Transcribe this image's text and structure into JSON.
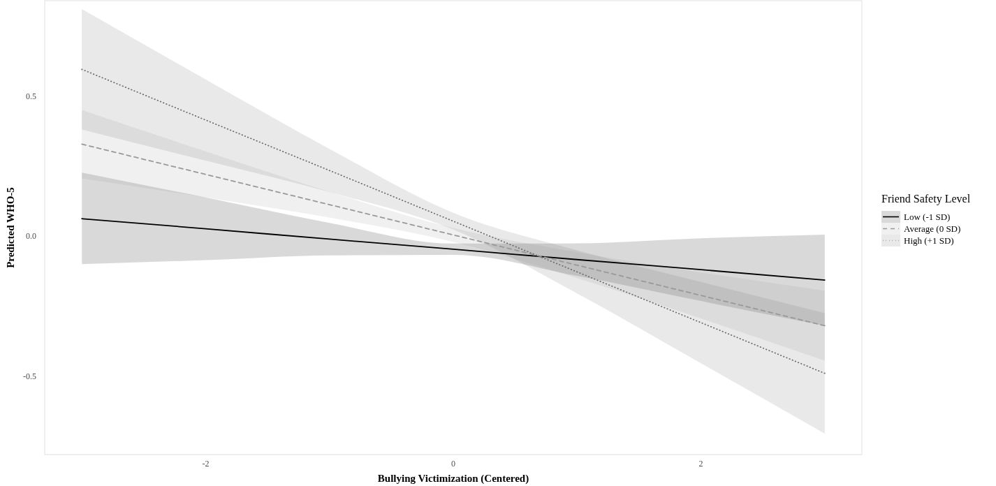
{
  "chart_data": {
    "type": "line",
    "xlabel": "Bullying Victimization (Centered)",
    "ylabel": "Predicted WHO-5",
    "legend_title": "Friend Safety Level",
    "legend": "right",
    "x": [
      -3,
      -2,
      -1,
      0,
      1,
      2,
      3
    ],
    "xlim": [
      -3.3,
      3.3
    ],
    "xticks": [
      -2,
      0,
      2
    ],
    "ylim": [
      -0.78,
      0.84
    ],
    "yticks": [
      -0.5,
      {
        "value": 0,
        "label": "0.0"
      },
      0.5
    ],
    "series": [
      {
        "name": "Low (-1 SD)",
        "color": "#000000",
        "line_style": "solid",
        "values": [
          0.062,
          0.026,
          -0.011,
          -0.047,
          -0.084,
          -0.12,
          -0.157
        ],
        "lower": [
          -0.1,
          -0.086,
          -0.069,
          -0.067,
          -0.142,
          -0.232,
          -0.32
        ],
        "upper": [
          0.226,
          0.138,
          0.047,
          -0.027,
          -0.026,
          -0.008,
          0.005
        ]
      },
      {
        "name": "Average (0 SD)",
        "color": "#999999",
        "line_style": "dashed",
        "values": [
          0.328,
          0.22,
          0.112,
          0.004,
          -0.104,
          -0.212,
          -0.32
        ],
        "lower": [
          0.206,
          0.138,
          0.066,
          -0.021,
          -0.15,
          -0.294,
          -0.445
        ],
        "upper": [
          0.45,
          0.302,
          0.158,
          0.029,
          -0.058,
          -0.13,
          -0.195
        ]
      },
      {
        "name": "High (+1 SD)",
        "color": "#6e6e6e",
        "line_style": "dotted",
        "values": [
          0.595,
          0.414,
          0.234,
          0.053,
          -0.128,
          -0.309,
          -0.49
        ],
        "lower": [
          0.38,
          0.269,
          0.157,
          0.023,
          -0.205,
          -0.454,
          -0.705
        ],
        "upper": [
          0.81,
          0.559,
          0.311,
          0.083,
          -0.051,
          -0.164,
          -0.275
        ]
      }
    ]
  }
}
